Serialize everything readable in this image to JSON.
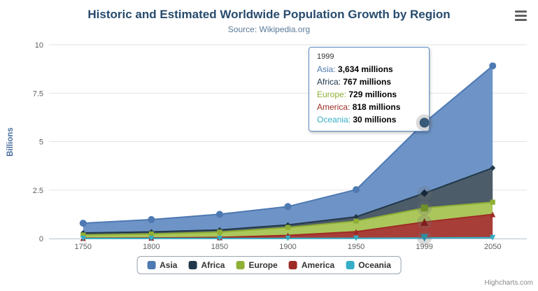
{
  "header": {
    "title": "Historic and Estimated Worldwide Population Growth by Region",
    "subtitle": "Source: Wikipedia.org",
    "menu_icon": "hamburger-menu-icon"
  },
  "chart_data": {
    "type": "area",
    "stacking": "normal",
    "title": "Historic and Estimated Worldwide Population Growth by Region",
    "subtitle": "Source: Wikipedia.org",
    "categories": [
      "1750",
      "1800",
      "1850",
      "1900",
      "1950",
      "1999",
      "2050"
    ],
    "series": [
      {
        "name": "Asia",
        "values": [
          502,
          635,
          809,
          947,
          1402,
          3634,
          5268
        ],
        "color": "#4E79B2",
        "area_color": "#6E94C7",
        "hover_color": "#3A5A7A",
        "marker": "circle"
      },
      {
        "name": "Africa",
        "values": [
          106,
          107,
          111,
          133,
          221,
          767,
          1766
        ],
        "color": "#22384A",
        "area_color": "#4C5C69",
        "hover_color": "#16293A",
        "marker": "diamond"
      },
      {
        "name": "Europe",
        "values": [
          163,
          203,
          276,
          408,
          547,
          729,
          628
        ],
        "color": "#8FAF35",
        "area_color": "#ABC75C",
        "hover_color": "#6F8F28",
        "marker": "square"
      },
      {
        "name": "America",
        "values": [
          18,
          31,
          54,
          156,
          339,
          818,
          1201
        ],
        "color": "#9E2B25",
        "area_color": "#A83E38",
        "hover_color": "#7E1F1B",
        "marker": "triangle"
      },
      {
        "name": "Oceania",
        "values": [
          2,
          2,
          2,
          6,
          13,
          30,
          46
        ],
        "color": "#35AEC6",
        "area_color": "#62C4D6",
        "hover_color": "#2B8FA5",
        "marker": "triangle-down"
      }
    ],
    "values_unit": "millions",
    "ylabel": "Billions",
    "xlabel": "",
    "yticks": [
      0,
      2.5,
      5,
      7.5,
      10
    ],
    "ylim": [
      0,
      10
    ],
    "grid": true,
    "legend_position": "bottom",
    "hover_index": 5
  },
  "tooltip": {
    "header": "1999",
    "border_color": "#5b8bc4",
    "items": [
      {
        "label": "Asia",
        "value": "3,634 millions"
      },
      {
        "label": "Africa",
        "value": "767 millions"
      },
      {
        "label": "Europe",
        "value": "729 millions"
      },
      {
        "label": "America",
        "value": "818 millions"
      },
      {
        "label": "Oceania",
        "value": "30 millions"
      }
    ]
  },
  "credits": {
    "label": "Highcharts.com"
  }
}
